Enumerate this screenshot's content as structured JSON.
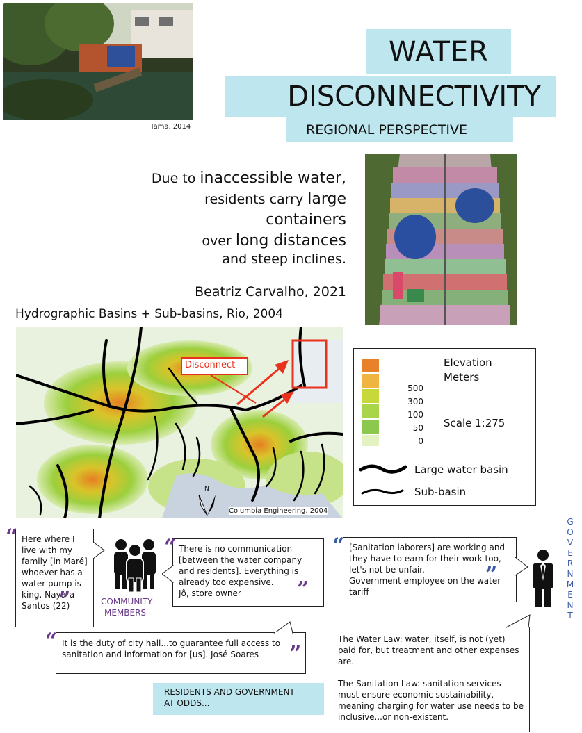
{
  "photo_top": {
    "caption": "Tama, 2014"
  },
  "title": {
    "line1": "WATER",
    "line2": "DISCONNECTIVITY",
    "subtitle": "REGIONAL PERSPECTIVE"
  },
  "quote": {
    "l1_small": "Due to ",
    "l1_big": "inaccessible water,",
    "l2_small": "residents carry ",
    "l2_big": "large containers",
    "l3_small": "over ",
    "l3_big": "long distances",
    "l4": "and steep inclines.",
    "attribution": "Beatriz Carvalho, 2021"
  },
  "map": {
    "heading": "Hydrographic Basins + Sub-basins, Rio, 2004",
    "disconnect_label": "Disconnect",
    "north_label": "N",
    "credit": "Columbia Engineering, 2004"
  },
  "legend": {
    "elevation_title_1": "Elevation",
    "elevation_title_2": "Meters",
    "levels": [
      "500",
      "300",
      "100",
      "50",
      "0"
    ],
    "scale": "Scale 1:275",
    "large_basin": "Large water basin",
    "sub_basin": "Sub-basin"
  },
  "community": {
    "label1": "COMMUNITY",
    "label2": "MEMBERS",
    "quote_mare": "Here where I live with my family [in Maré] whoever has a water pump is king. Nayara Santos (22)",
    "quote_store_1": "There is no communication [between the water company and residents]. Everything is already too expensive.",
    "quote_store_2": "Jô, store owner",
    "quote_city": "It is the duty of city hall...to guarantee full access to sanitation and information for [us].    José Soares"
  },
  "government": {
    "letters": [
      "G",
      "O",
      "V",
      "E",
      "R",
      "N",
      "M",
      "E",
      "N",
      "T"
    ],
    "quote_1": "[Sanitation laborers] are working and they have to earn for their work too, let's not be unfair.",
    "quote_2": "Government employee on the water tariff",
    "law_1": "The Water Law: water, itself, is not (yet) paid for, but treatment and other expenses are.",
    "law_2": "The Sanitation Law: sanitation services must ensure economic sustainability, meaning charging for water use needs to be inclusive...or non-existent."
  },
  "odds": {
    "line1": "RESIDENTS AND GOVERNMENT",
    "line2": "AT ODDS..."
  },
  "colors": {
    "accent_box": "#bde6ee",
    "purple": "#6a3a8a",
    "blue": "#3a5aa8",
    "red": "#e8321e"
  }
}
